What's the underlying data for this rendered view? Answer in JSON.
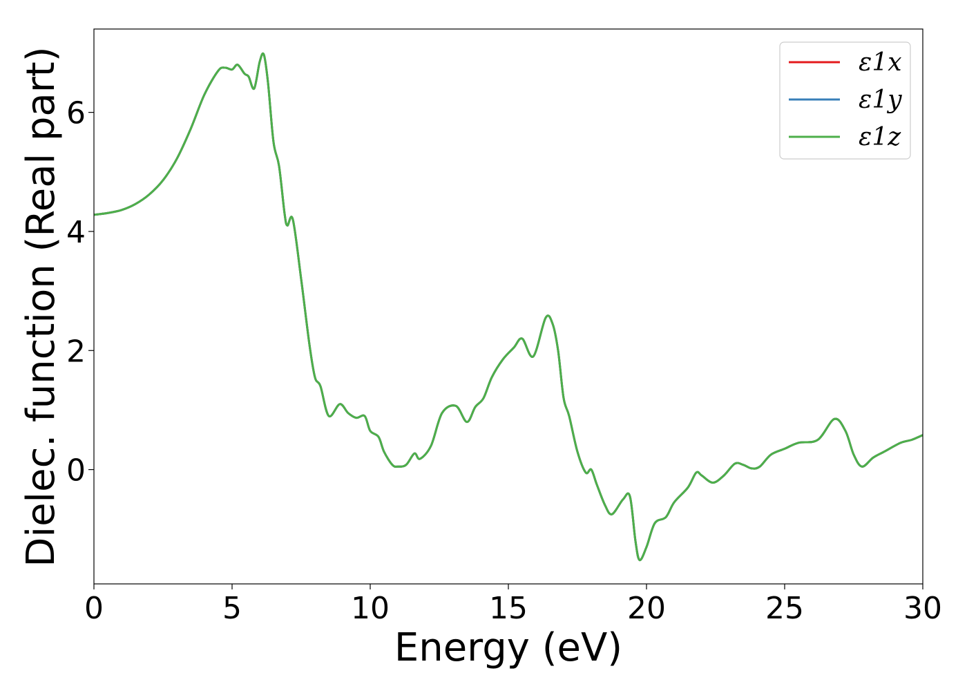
{
  "chart_data": {
    "type": "line",
    "title": "",
    "xlabel": "Energy (eV)",
    "ylabel": "Dielec. function (Real part)",
    "xlim": [
      0,
      30
    ],
    "ylim": [
      -1.92,
      7.4
    ],
    "xticks": [
      0,
      5,
      10,
      15,
      20,
      25,
      30
    ],
    "yticks": [
      0,
      2,
      4,
      6
    ],
    "grid": false,
    "legend_position": "top-right",
    "legend": [
      "ε1x",
      "ε1y",
      "ε1z"
    ],
    "colors": {
      "ε1x": "#e41a1c",
      "ε1y": "#377eb8",
      "ε1z": "#4daf4a"
    },
    "x": [
      0,
      0.5,
      1,
      1.5,
      2,
      2.5,
      3,
      3.5,
      4,
      4.5,
      4.75,
      5,
      5.2,
      5.45,
      5.6,
      5.8,
      6.0,
      6.15,
      6.3,
      6.5,
      6.7,
      6.9,
      7.0,
      7.2,
      7.5,
      7.8,
      8.0,
      8.2,
      8.5,
      8.9,
      9.2,
      9.5,
      9.8,
      10.0,
      10.3,
      10.5,
      10.8,
      11.0,
      11.3,
      11.6,
      11.8,
      12.2,
      12.6,
      13.1,
      13.5,
      13.8,
      14.1,
      14.4,
      14.8,
      15.2,
      15.5,
      15.9,
      16.35,
      16.6,
      16.8,
      17.0,
      17.2,
      17.5,
      17.8,
      18.0,
      18.2,
      18.5,
      18.75,
      19.15,
      19.4,
      19.6,
      19.75,
      20.0,
      20.3,
      20.7,
      21.0,
      21.5,
      21.8,
      22.0,
      22.4,
      22.8,
      23.2,
      23.5,
      23.8,
      24.1,
      24.5,
      25.0,
      25.5,
      26.2,
      26.8,
      27.2,
      27.5,
      27.8,
      28.2,
      28.6,
      29.2,
      29.6,
      30.0
    ],
    "series": [
      {
        "name": "ε1x",
        "values": [
          4.28,
          4.31,
          4.36,
          4.46,
          4.62,
          4.86,
          5.22,
          5.72,
          6.3,
          6.7,
          6.75,
          6.72,
          6.8,
          6.65,
          6.6,
          6.4,
          6.85,
          6.97,
          6.5,
          5.5,
          5.1,
          4.3,
          4.1,
          4.2,
          3.2,
          2.1,
          1.55,
          1.4,
          0.9,
          1.1,
          0.95,
          0.87,
          0.9,
          0.65,
          0.55,
          0.3,
          0.08,
          0.05,
          0.08,
          0.27,
          0.18,
          0.4,
          0.95,
          1.07,
          0.8,
          1.05,
          1.2,
          1.55,
          1.85,
          2.05,
          2.2,
          1.9,
          2.55,
          2.45,
          2.0,
          1.2,
          0.9,
          0.3,
          -0.05,
          0.0,
          -0.25,
          -0.6,
          -0.75,
          -0.5,
          -0.45,
          -1.2,
          -1.52,
          -1.3,
          -0.9,
          -0.8,
          -0.55,
          -0.3,
          -0.05,
          -0.1,
          -0.22,
          -0.1,
          0.1,
          0.08,
          0.02,
          0.05,
          0.25,
          0.35,
          0.45,
          0.5,
          0.85,
          0.65,
          0.25,
          0.05,
          0.2,
          0.3,
          0.45,
          0.5,
          0.58
        ]
      },
      {
        "name": "ε1y",
        "values": [
          4.28,
          4.31,
          4.36,
          4.46,
          4.62,
          4.86,
          5.22,
          5.72,
          6.3,
          6.7,
          6.75,
          6.72,
          6.8,
          6.65,
          6.6,
          6.4,
          6.85,
          6.97,
          6.5,
          5.5,
          5.1,
          4.3,
          4.1,
          4.2,
          3.2,
          2.1,
          1.55,
          1.4,
          0.9,
          1.1,
          0.95,
          0.87,
          0.9,
          0.65,
          0.55,
          0.3,
          0.08,
          0.05,
          0.08,
          0.27,
          0.18,
          0.4,
          0.95,
          1.07,
          0.8,
          1.05,
          1.2,
          1.55,
          1.85,
          2.05,
          2.2,
          1.9,
          2.55,
          2.45,
          2.0,
          1.2,
          0.9,
          0.3,
          -0.05,
          0.0,
          -0.25,
          -0.6,
          -0.75,
          -0.5,
          -0.45,
          -1.2,
          -1.52,
          -1.3,
          -0.9,
          -0.8,
          -0.55,
          -0.3,
          -0.05,
          -0.1,
          -0.22,
          -0.1,
          0.1,
          0.08,
          0.02,
          0.05,
          0.25,
          0.35,
          0.45,
          0.5,
          0.85,
          0.65,
          0.25,
          0.05,
          0.2,
          0.3,
          0.45,
          0.5,
          0.58
        ]
      },
      {
        "name": "ε1z",
        "values": [
          4.28,
          4.31,
          4.36,
          4.46,
          4.62,
          4.86,
          5.22,
          5.72,
          6.3,
          6.7,
          6.75,
          6.72,
          6.8,
          6.65,
          6.6,
          6.4,
          6.85,
          6.97,
          6.5,
          5.5,
          5.1,
          4.3,
          4.1,
          4.2,
          3.2,
          2.1,
          1.55,
          1.4,
          0.9,
          1.1,
          0.95,
          0.87,
          0.9,
          0.65,
          0.55,
          0.3,
          0.08,
          0.05,
          0.08,
          0.27,
          0.18,
          0.4,
          0.95,
          1.07,
          0.8,
          1.05,
          1.2,
          1.55,
          1.85,
          2.05,
          2.2,
          1.9,
          2.55,
          2.45,
          2.0,
          1.2,
          0.9,
          0.3,
          -0.05,
          0.0,
          -0.25,
          -0.6,
          -0.75,
          -0.5,
          -0.45,
          -1.2,
          -1.52,
          -1.3,
          -0.9,
          -0.8,
          -0.55,
          -0.3,
          -0.05,
          -0.1,
          -0.22,
          -0.1,
          0.1,
          0.08,
          0.02,
          0.05,
          0.25,
          0.35,
          0.45,
          0.5,
          0.85,
          0.65,
          0.25,
          0.05,
          0.2,
          0.3,
          0.45,
          0.5,
          0.58
        ]
      }
    ]
  }
}
